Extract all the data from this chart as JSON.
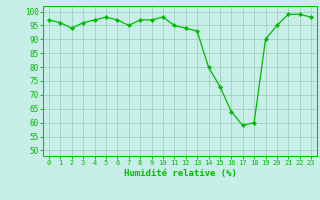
{
  "x": [
    0,
    1,
    2,
    3,
    4,
    5,
    6,
    7,
    8,
    9,
    10,
    11,
    12,
    13,
    14,
    15,
    16,
    17,
    18,
    19,
    20,
    21,
    22,
    23
  ],
  "y": [
    97,
    96,
    94,
    96,
    97,
    98,
    97,
    95,
    97,
    97,
    98,
    95,
    94,
    93,
    80,
    73,
    64,
    59,
    60,
    90,
    95,
    99,
    99,
    98
  ],
  "line_color": "#00bb00",
  "marker_color": "#00bb00",
  "bg_color": "#c8eee8",
  "grid_color": "#99ccbb",
  "xlabel": "Humidité relative (%)",
  "xlabel_color": "#00bb00",
  "tick_color": "#00bb00",
  "spine_color": "#00bb00",
  "ylim": [
    48,
    102
  ],
  "yticks": [
    50,
    55,
    60,
    65,
    70,
    75,
    80,
    85,
    90,
    95,
    100
  ],
  "xlim": [
    -0.5,
    23.5
  ],
  "xticks": [
    0,
    1,
    2,
    3,
    4,
    5,
    6,
    7,
    8,
    9,
    10,
    11,
    12,
    13,
    14,
    15,
    16,
    17,
    18,
    19,
    20,
    21,
    22,
    23
  ]
}
